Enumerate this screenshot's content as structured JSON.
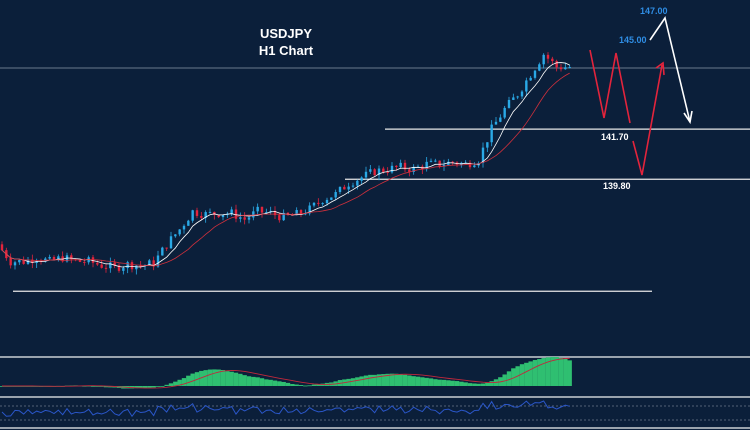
{
  "chart_data": {
    "type": "candlestick",
    "title": "USDJPY",
    "subtitle": "H1 Chart",
    "ylim": [
      133.7,
      146.6
    ],
    "closes": [
      137.33,
      136.68,
      136.68,
      136.83,
      136.68,
      136.83,
      136.68,
      136.68,
      136.53,
      136.45,
      136.57,
      136.53,
      136.61,
      137.33,
      137.9,
      138.58,
      138.47,
      138.51,
      138.51,
      138.28,
      138.58,
      138.51,
      138.35,
      138.47,
      138.66,
      139.04,
      139.23,
      139.65,
      139.87,
      140.1,
      140.18,
      140.26,
      140.18,
      140.37,
      140.37,
      140.45,
      140.37,
      140.56,
      141.7,
      142.46,
      143.03,
      143.79,
      144.55,
      144.06,
      144.06
    ],
    "levels": [
      {
        "price": 144.02,
        "label": ""
      },
      {
        "price": 141.7,
        "label": "141.70"
      },
      {
        "price": 139.8,
        "label": "139.80"
      },
      {
        "price": 135.55,
        "label": ""
      }
    ],
    "targets": [
      {
        "label": "145.00",
        "color": "#2f8de4"
      },
      {
        "label": "147.00",
        "color": "#2f8de4"
      }
    ],
    "colors": {
      "bull": "#2aa9e6",
      "bear": "#e3243c",
      "hist": "#2fbf71",
      "signal": "#c0283c",
      "rsi": "#2a56c8"
    }
  }
}
